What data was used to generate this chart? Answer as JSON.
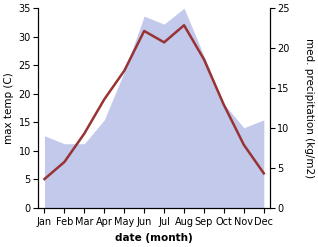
{
  "months": [
    "Jan",
    "Feb",
    "Mar",
    "Apr",
    "May",
    "Jun",
    "Jul",
    "Aug",
    "Sep",
    "Oct",
    "Nov",
    "Dec"
  ],
  "temperature": [
    5,
    8,
    13,
    19,
    24,
    31,
    29,
    32,
    26,
    18,
    11,
    6
  ],
  "precipitation": [
    9,
    8,
    8,
    11,
    17,
    24,
    23,
    25,
    19,
    13,
    10,
    11
  ],
  "temp_color": "#993333",
  "precip_color": "#b8c0e8",
  "temp_ylim": [
    0,
    35
  ],
  "precip_ylim": [
    0,
    25
  ],
  "temp_yticks": [
    0,
    5,
    10,
    15,
    20,
    25,
    30,
    35
  ],
  "precip_yticks": [
    0,
    5,
    10,
    15,
    20,
    25
  ],
  "xlabel": "date (month)",
  "ylabel_left": "max temp (C)",
  "ylabel_right": "med. precipitation (kg/m2)",
  "label_fontsize": 7.5,
  "tick_fontsize": 7,
  "background_color": "#ffffff",
  "line_width": 1.8
}
